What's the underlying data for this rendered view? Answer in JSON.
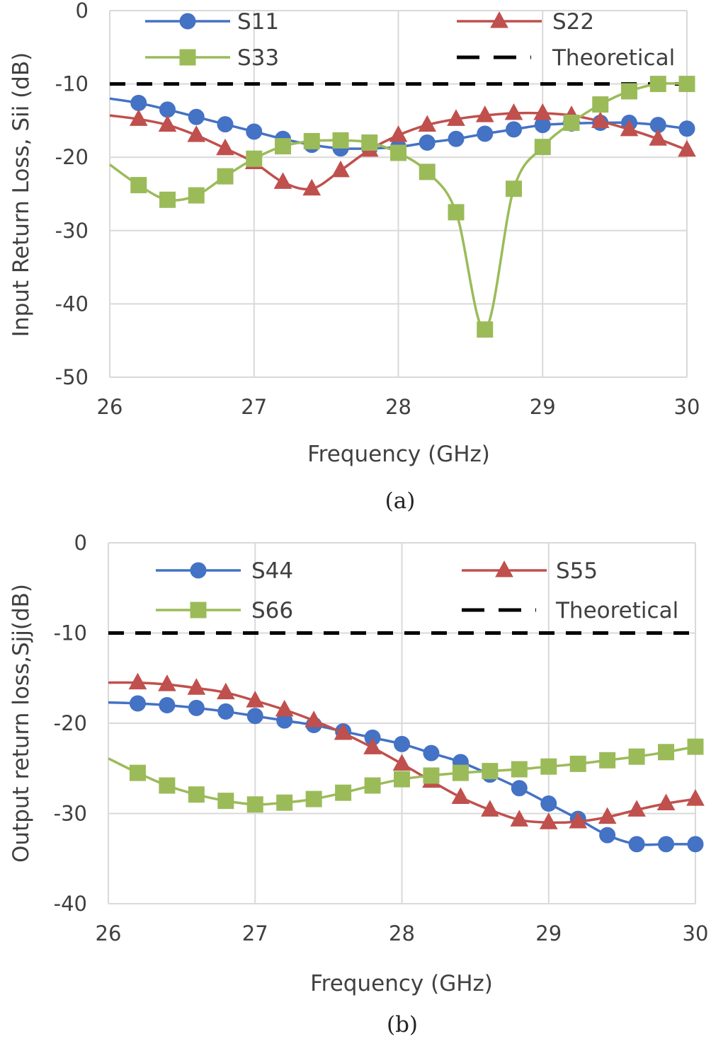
{
  "charts": [
    {
      "id": "a",
      "caption": "(a)",
      "chart_data": {
        "type": "line",
        "xlabel": "Frequency (GHz)",
        "ylabel": "Input Return Loss, Sii (dB)",
        "xlim": [
          26,
          30
        ],
        "ylim": [
          -50,
          0
        ],
        "xticks": [
          26,
          27,
          28,
          29,
          30
        ],
        "yticks": [
          0,
          -10,
          -20,
          -30,
          -40,
          -50
        ],
        "grid": true,
        "legend_position": "top",
        "theoretical": {
          "name": "Theoretical",
          "value": -10,
          "color": "#000000"
        },
        "x": [
          26.0,
          26.2,
          26.4,
          26.6,
          26.8,
          27.0,
          27.2,
          27.4,
          27.6,
          27.8,
          28.0,
          28.2,
          28.4,
          28.6,
          28.8,
          29.0,
          29.2,
          29.4,
          29.6,
          29.8,
          30.0
        ],
        "series": [
          {
            "name": "S11",
            "color": "#4472C4",
            "marker": "circle",
            "values": [
              -12,
              -12.6,
              -13.5,
              -14.5,
              -15.5,
              -16.5,
              -17.5,
              -18.3,
              -18.8,
              -18.8,
              -18.6,
              -18.0,
              -17.5,
              -16.8,
              -16.2,
              -15.6,
              -15.4,
              -15.3,
              -15.3,
              -15.6,
              -16.1
            ]
          },
          {
            "name": "S22",
            "color": "#C0504D",
            "marker": "triangle",
            "values": [
              -14.3,
              -14.8,
              -15.6,
              -17.0,
              -18.8,
              -20.7,
              -23.4,
              -24.3,
              -21.8,
              -19.0,
              -17.0,
              -15.6,
              -14.8,
              -14.3,
              -14.0,
              -14.0,
              -14.3,
              -15.1,
              -16.2,
              -17.5,
              -19.0
            ]
          },
          {
            "name": "S33",
            "color": "#9BBB59",
            "marker": "square",
            "values": [
              -21,
              -23.8,
              -25.8,
              -25.2,
              -22.6,
              -20.2,
              -18.5,
              -17.8,
              -17.7,
              -18.0,
              -19.4,
              -22.0,
              -27.5,
              -43.5,
              -24.3,
              -18.6,
              -15.3,
              -12.8,
              -11.0,
              -10.0,
              -10.0
            ]
          }
        ]
      }
    },
    {
      "id": "b",
      "caption": "(b)",
      "chart_data": {
        "type": "line",
        "xlabel": "Frequency (GHz)",
        "ylabel": "Output return loss,Sjj(dB)",
        "xlim": [
          26,
          30
        ],
        "ylim": [
          -40,
          0
        ],
        "xticks": [
          26,
          27,
          28,
          29,
          30
        ],
        "yticks": [
          0,
          -10,
          -20,
          -30,
          -40
        ],
        "grid": true,
        "legend_position": "top",
        "theoretical": {
          "name": "Theoretical",
          "value": -10,
          "color": "#000000"
        },
        "x": [
          26.0,
          26.2,
          26.4,
          26.6,
          26.8,
          27.0,
          27.2,
          27.4,
          27.6,
          27.8,
          28.0,
          28.2,
          28.4,
          28.6,
          28.8,
          29.0,
          29.2,
          29.4,
          29.6,
          29.8,
          30.0
        ],
        "series": [
          {
            "name": "S44",
            "color": "#4472C4",
            "marker": "circle",
            "values": [
              -17.7,
              -17.8,
              -18.0,
              -18.3,
              -18.7,
              -19.2,
              -19.7,
              -20.2,
              -20.9,
              -21.6,
              -22.3,
              -23.3,
              -24.3,
              -25.7,
              -27.2,
              -28.9,
              -30.6,
              -32.4,
              -33.4,
              -33.4,
              -33.4
            ]
          },
          {
            "name": "S55",
            "color": "#C0504D",
            "marker": "triangle",
            "values": [
              -15.5,
              -15.5,
              -15.7,
              -16.1,
              -16.6,
              -17.5,
              -18.5,
              -19.7,
              -21.1,
              -22.7,
              -24.5,
              -26.4,
              -28.2,
              -29.6,
              -30.7,
              -31.0,
              -30.9,
              -30.4,
              -29.6,
              -28.9,
              -28.4
            ]
          },
          {
            "name": "S66",
            "color": "#9BBB59",
            "marker": "square",
            "values": [
              -23.9,
              -25.5,
              -26.9,
              -27.9,
              -28.6,
              -29.0,
              -28.8,
              -28.4,
              -27.7,
              -26.9,
              -26.2,
              -25.8,
              -25.5,
              -25.3,
              -25.1,
              -24.8,
              -24.5,
              -24.1,
              -23.7,
              -23.2,
              -22.6
            ]
          }
        ]
      }
    }
  ]
}
